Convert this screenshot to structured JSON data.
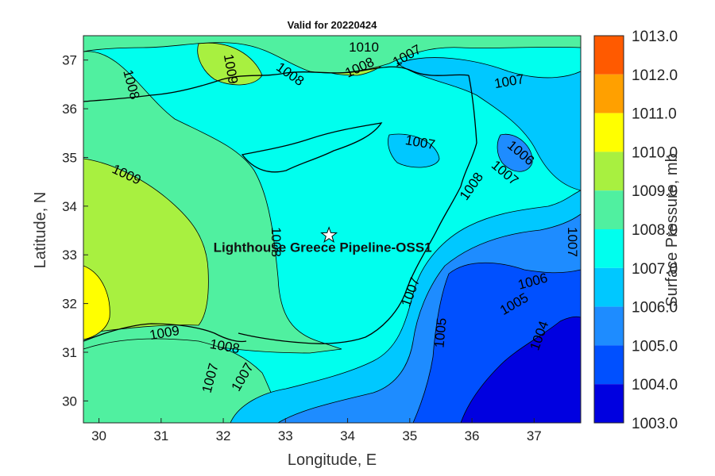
{
  "map": {
    "title": "Valid for 20220424",
    "xlabel": "Longitude, E",
    "ylabel": "Latitude, N",
    "x_ticks": [
      "30",
      "31",
      "32",
      "33",
      "34",
      "35",
      "36",
      "37"
    ],
    "y_ticks": [
      "30",
      "31",
      "32",
      "33",
      "34",
      "35",
      "36",
      "37"
    ],
    "colorbar_label": "Surface Pressure, mb",
    "colorbar_ticks": [
      "1013.0",
      "1012.0",
      "1011.0",
      "1010.0",
      "1009.0",
      "1008.0",
      "1007.0",
      "1006.0",
      "1005.0",
      "1004.0",
      "1003.0"
    ],
    "colorbar_colors": [
      "#ff5a00",
      "#ffa000",
      "#ffff00",
      "#a8f040",
      "#50f0a0",
      "#00ffee",
      "#00c8ff",
      "#1e8cff",
      "#0050ff",
      "#0000e0",
      "#000090"
    ],
    "site": {
      "name": "Lighthouse Greece Pipeline-OSS1",
      "lon": 33.7,
      "lat": 33.4
    },
    "contour_labels": [
      "1010",
      "1009",
      "1008",
      "1008",
      "1008",
      "1007",
      "1007",
      "1007",
      "1006",
      "1007",
      "1008",
      "1009",
      "1008",
      "1007",
      "1007",
      "1006",
      "1005",
      "1005",
      "1004",
      "1009",
      "1008",
      "1007",
      "1007"
    ]
  }
}
